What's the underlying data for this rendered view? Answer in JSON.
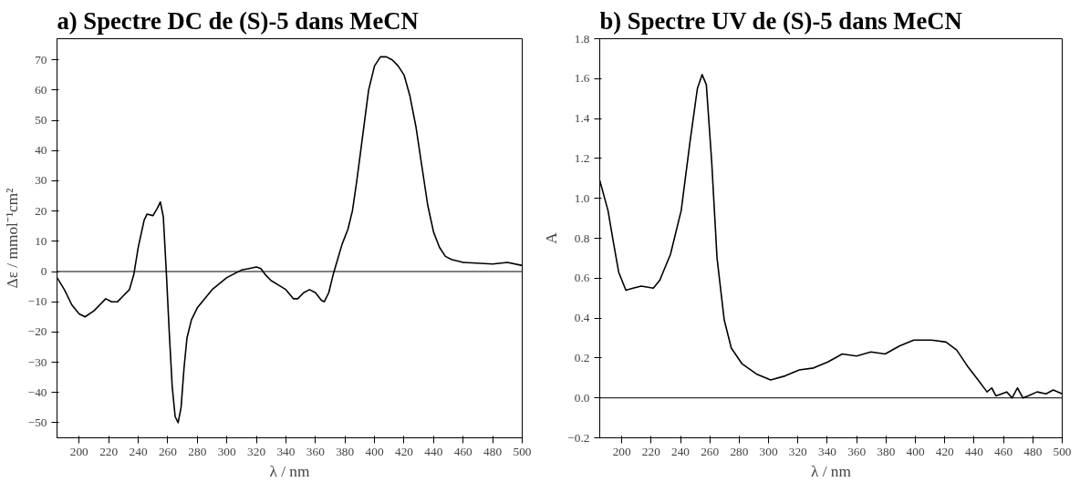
{
  "chart_data": [
    {
      "type": "line",
      "title": "a) Spectre DC de (S)-5 dans MeCN",
      "xlabel": "λ / nm",
      "ylabel": "Δε / mmol⁻¹cm²",
      "x": [
        185,
        190,
        195,
        200,
        204,
        210,
        214,
        218,
        222,
        226,
        230,
        234,
        237,
        240,
        244,
        246,
        250,
        253,
        255,
        257,
        259,
        261,
        263,
        265,
        267,
        269,
        271,
        273,
        276,
        280,
        290,
        300,
        310,
        315,
        320,
        323,
        326,
        330,
        335,
        340,
        345,
        348,
        352,
        356,
        360,
        364,
        366,
        369,
        372,
        375,
        378,
        382,
        385,
        388,
        392,
        396,
        400,
        404,
        408,
        412,
        416,
        420,
        424,
        428,
        432,
        436,
        440,
        444,
        448,
        452,
        460,
        480,
        490,
        500
      ],
      "series": [
        {
          "color": "#000000",
          "values": [
            -2,
            -6,
            -11,
            -14,
            -15,
            -13,
            -11,
            -9,
            -10,
            -10,
            -8,
            -6,
            -1,
            8,
            17,
            19,
            18.5,
            21,
            23,
            18,
            0,
            -20,
            -38,
            -48,
            -50,
            -45,
            -32,
            -22,
            -16,
            -12,
            -6,
            -2,
            0.5,
            1,
            1.5,
            1,
            -1,
            -3,
            -4.5,
            -6,
            -9,
            -9,
            -7,
            -6,
            -7,
            -9.5,
            -10,
            -7,
            -1,
            4,
            9,
            14,
            20,
            30,
            45,
            60,
            68,
            71,
            71,
            70,
            68,
            65,
            58,
            48,
            35,
            22,
            13,
            8,
            5,
            4,
            3,
            2.5,
            3,
            2
          ]
        }
      ],
      "xlim": [
        185,
        500
      ],
      "xticks": [
        200,
        220,
        240,
        260,
        280,
        300,
        320,
        340,
        360,
        380,
        400,
        420,
        440,
        460,
        480,
        500
      ],
      "ylim": [
        -55,
        77
      ],
      "yticks": [
        -50,
        -40,
        -30,
        -20,
        -10,
        0,
        10,
        20,
        30,
        40,
        50,
        60,
        70
      ],
      "ref_lines": [
        {
          "axis": "y",
          "value": 0,
          "color": "#000000"
        }
      ],
      "grid": false
    },
    {
      "type": "line",
      "title": "b) Spectre UV de (S)-5 dans MeCN",
      "xlabel": "λ / nm",
      "ylabel": "A",
      "x": [
        185,
        190.6,
        194.3,
        197.9,
        202.8,
        207.7,
        213.3,
        221.5,
        225.9,
        233.2,
        240.5,
        246.6,
        251.5,
        254.7,
        257.6,
        261.2,
        264.9,
        269.8,
        274.6,
        282,
        291.7,
        301.4,
        311.2,
        320.9,
        330.7,
        340.4,
        350.2,
        359.9,
        369.7,
        379.4,
        389.1,
        398.9,
        411.1,
        420.8,
        428.1,
        435.4,
        442.7,
        448.8,
        452,
        454.9,
        462.2,
        465.9,
        469.5,
        473.2,
        476.8,
        482.9,
        489,
        493.9,
        500
      ],
      "series": [
        {
          "color": "#000000",
          "values": [
            1.09,
            0.94,
            0.78,
            0.63,
            0.54,
            0.55,
            0.56,
            0.55,
            0.59,
            0.72,
            0.94,
            1.29,
            1.55,
            1.62,
            1.57,
            1.19,
            0.7,
            0.39,
            0.25,
            0.17,
            0.12,
            0.09,
            0.11,
            0.14,
            0.15,
            0.18,
            0.22,
            0.21,
            0.23,
            0.22,
            0.26,
            0.29,
            0.29,
            0.28,
            0.24,
            0.16,
            0.09,
            0.03,
            0.05,
            0.01,
            0.03,
            0.0,
            0.05,
            0.0,
            0.01,
            0.03,
            0.02,
            0.04,
            0.02
          ]
        }
      ],
      "xlim": [
        185,
        500
      ],
      "xticks": [
        200,
        220,
        240,
        260,
        280,
        300,
        320,
        340,
        360,
        380,
        400,
        420,
        440,
        460,
        480,
        500
      ],
      "ylim": [
        -0.2,
        1.8
      ],
      "yticks": [
        -0.2,
        {
          "value": 0,
          "label": "0.0"
        },
        0.2,
        0.4,
        0.6,
        0.8,
        {
          "value": 1,
          "label": "1.0"
        },
        1.2,
        1.4,
        1.6,
        1.8
      ],
      "ref_lines": [
        {
          "axis": "y",
          "value": 0,
          "color": "#000000"
        }
      ],
      "grid": false
    }
  ]
}
